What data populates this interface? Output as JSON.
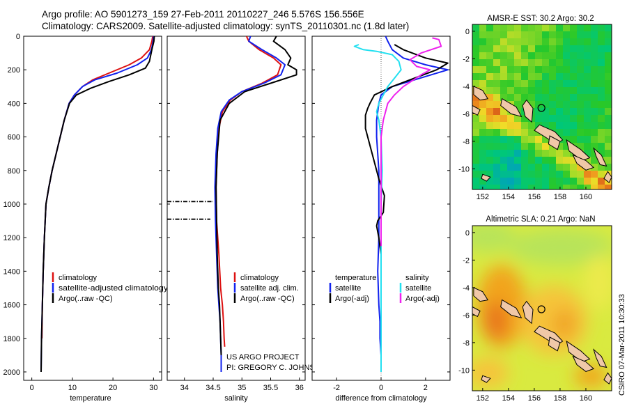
{
  "header": {
    "line1": "Argo profile: AO 5901273_159 27-Feb-2011 20110227_246 5.576S 156.556E",
    "line2": "Climatology: CARS2009. Satellite-adjusted climatology: synTS_20110301.nc (1.8d later)"
  },
  "colors": {
    "climatology": "#dd1111",
    "satellite": "#1122ee",
    "argo": "#000000",
    "salinity_satellite": "#22e0f0",
    "argo_adj_salinity": "#ee22ee",
    "land": "#f0c8a8"
  },
  "chart_data": [
    {
      "type": "line",
      "id": "temperature",
      "xlabel": "temperature",
      "ylabel": "",
      "xlim": [
        -2,
        32
      ],
      "ylim": [
        2050,
        0
      ],
      "xticks": [
        0,
        10,
        20,
        30
      ],
      "yticks": [
        0,
        200,
        400,
        600,
        800,
        1000,
        1200,
        1400,
        1600,
        1800,
        2000
      ],
      "legend_entries": [
        "climatology",
        "satellite-adjusted climatology",
        "Argo(..raw -QC)"
      ],
      "series": [
        {
          "name": "climatology",
          "color": "#dd1111",
          "x": [
            29.8,
            29.6,
            29.0,
            27.0,
            24.0,
            19.0,
            15.0,
            12.5,
            10.5,
            9.2,
            8.0,
            7.0,
            6.0,
            5.0,
            4.2,
            3.5,
            3.1,
            2.8,
            2.6,
            2.5
          ],
          "y": [
            0,
            30,
            80,
            130,
            170,
            220,
            260,
            300,
            350,
            400,
            500,
            600,
            700,
            800,
            900,
            1000,
            1200,
            1400,
            1600,
            1800
          ]
        },
        {
          "name": "satellite-adjusted climatology",
          "color": "#1122ee",
          "x": [
            30.0,
            29.9,
            29.5,
            28.5,
            26.0,
            21.0,
            15.5,
            12.5,
            10.5,
            9.2,
            8.0,
            7.0,
            6.0,
            5.0,
            4.2,
            3.5,
            3.1,
            2.8,
            2.6,
            2.4,
            2.3
          ],
          "y": [
            0,
            30,
            80,
            130,
            170,
            220,
            260,
            300,
            350,
            400,
            500,
            600,
            700,
            800,
            900,
            1000,
            1200,
            1400,
            1600,
            1800,
            2000
          ]
        },
        {
          "name": "Argo(..raw -QC)",
          "color": "#000000",
          "x": [
            30.2,
            30.1,
            29.6,
            29.0,
            28.0,
            24.0,
            19.0,
            14.5,
            11.0,
            9.3,
            8.0,
            7.0,
            6.0,
            5.0,
            4.2,
            3.5,
            3.1,
            2.8,
            2.6,
            2.4,
            2.3
          ],
          "y": [
            0,
            30,
            80,
            150,
            190,
            230,
            270,
            310,
            350,
            400,
            500,
            600,
            700,
            800,
            900,
            1000,
            1200,
            1400,
            1600,
            1800,
            2000
          ]
        }
      ]
    },
    {
      "type": "line",
      "id": "salinity",
      "xlabel": "salinity",
      "xlim": [
        33.7,
        36.1
      ],
      "ylim": [
        2050,
        0
      ],
      "xticks": [
        34,
        34.5,
        35,
        35.5,
        36
      ],
      "legend_entries": [
        "climatology",
        "satellite adj. clim.",
        "Argo(..raw -QC)"
      ],
      "annotation": [
        "US ARGO PROJECT",
        "PI: GREGORY C. JOHNSON"
      ],
      "series": [
        {
          "name": "climatology",
          "color": "#dd1111",
          "x": [
            35.08,
            35.12,
            35.3,
            35.55,
            35.68,
            35.62,
            35.35,
            35.0,
            34.8,
            34.66,
            34.6,
            34.57,
            34.55,
            34.56,
            34.6,
            34.63,
            34.66,
            34.68,
            34.69,
            34.7
          ],
          "y": [
            0,
            30,
            80,
            130,
            170,
            230,
            280,
            330,
            380,
            450,
            550,
            700,
            900,
            1100,
            1300,
            1500,
            1600,
            1700,
            1800,
            1850
          ]
        },
        {
          "name": "satellite adj. clim.",
          "color": "#1122ee",
          "x": [
            35.15,
            35.12,
            35.35,
            35.6,
            35.75,
            35.68,
            35.38,
            35.0,
            34.78,
            34.64,
            34.58,
            34.55,
            34.53,
            34.54,
            34.56,
            34.58,
            34.6,
            34.62,
            34.63,
            34.64,
            34.64
          ],
          "y": [
            0,
            30,
            80,
            130,
            170,
            230,
            280,
            330,
            380,
            450,
            550,
            700,
            900,
            1100,
            1300,
            1500,
            1600,
            1700,
            1800,
            1900,
            2000
          ]
        },
        {
          "name": "Argo(..raw -QC)",
          "color": "#000000",
          "x": [
            35.6,
            35.55,
            35.75,
            35.85,
            35.8,
            35.95,
            35.95,
            35.5,
            35.05,
            34.78,
            34.62,
            34.57,
            34.55,
            34.56,
            34.57,
            34.59,
            34.61,
            34.62,
            34.63,
            34.64
          ],
          "y": [
            0,
            30,
            80,
            130,
            170,
            200,
            230,
            280,
            330,
            400,
            500,
            700,
            900,
            1100,
            1300,
            1500,
            1600,
            1700,
            1800,
            1900
          ]
        },
        {
          "name": "",
          "color": "#000000",
          "dash": "dashdot",
          "x": [
            33.7,
            34.5
          ],
          "y": [
            985,
            985
          ]
        },
        {
          "name": "",
          "color": "#000000",
          "dash": "dashdot",
          "x": [
            33.7,
            34.45
          ],
          "y": [
            1090,
            1090
          ]
        }
      ]
    },
    {
      "type": "line",
      "id": "difference",
      "xlabel": "difference from climatology",
      "xlim": [
        -3.1,
        3.1
      ],
      "ylim": [
        2050,
        0
      ],
      "xticks": [
        -2,
        0,
        2
      ],
      "legend": {
        "temperature_title": "temperature",
        "salinity_title": "salinity",
        "temperature_entries": [
          "satellite",
          "Argo(-adj)"
        ],
        "salinity_entries": [
          "satellite",
          "Argo(-adj)"
        ]
      },
      "series": [
        {
          "name": "satellite",
          "group": "temperature",
          "color": "#1122ee",
          "x": [
            0.2,
            0.3,
            0.5,
            1.0,
            2.0,
            3.0,
            2.0,
            0.5,
            0.0,
            -0.1,
            -0.2,
            -0.2,
            -0.1,
            -0.1,
            -0.1,
            -0.15,
            -0.1,
            -0.05,
            -0.05,
            0.0,
            0.0
          ],
          "y": [
            0,
            30,
            80,
            130,
            170,
            200,
            240,
            300,
            350,
            400,
            500,
            600,
            800,
            1000,
            1200,
            1400,
            1600,
            1700,
            1800,
            1900,
            2000
          ]
        },
        {
          "name": "Argo(-adj)",
          "group": "temperature",
          "color": "#000000",
          "x": [
            0.6,
            1.0,
            2.0,
            3.0,
            2.5,
            1.5,
            0.5,
            -0.3,
            -0.5,
            -0.6,
            -0.7,
            -0.7,
            -0.5,
            -0.3,
            -0.1,
            0.15,
            0.1,
            -0.15,
            -0.2,
            -0.1,
            0.0
          ],
          "y": [
            50,
            80,
            130,
            160,
            200,
            250,
            300,
            350,
            400,
            430,
            470,
            550,
            650,
            750,
            850,
            950,
            1050,
            1100,
            1130,
            1200,
            1300
          ]
        },
        {
          "name": "satellite",
          "group": "salinity",
          "color": "#22e0f0",
          "x": [
            -1.0,
            -1.2,
            -0.8,
            -0.2,
            0.5,
            0.8,
            0.9,
            0.6,
            0.3,
            0.1,
            -0.1,
            -0.2,
            -0.1,
            0.0,
            0.05,
            0.0,
            0.0,
            0.0,
            0.0,
            0.0
          ],
          "y": [
            50,
            60,
            80,
            90,
            110,
            150,
            200,
            250,
            300,
            350,
            400,
            450,
            500,
            600,
            800,
            1000,
            1200,
            1400,
            1600,
            2000
          ]
        },
        {
          "name": "Argo(-adj)",
          "group": "salinity",
          "color": "#ee22ee",
          "x": [
            2.3,
            2.6,
            2.7,
            1.8,
            1.3,
            1.6,
            2.2,
            1.8,
            1.0,
            0.6,
            0.3,
            0.1,
            0.0,
            0.0,
            0.0,
            0.0,
            0.0,
            0.0,
            0.0,
            0.0
          ],
          "y": [
            10,
            20,
            60,
            100,
            140,
            180,
            200,
            230,
            300,
            350,
            400,
            500,
            600,
            700,
            800,
            900,
            1000,
            1100,
            1200,
            1250
          ]
        }
      ]
    },
    {
      "type": "heatmap",
      "id": "sst_map",
      "title": "AMSR-E SST: 30.2  Argo: 30.2",
      "xlim": [
        151.2,
        162
      ],
      "ylim": [
        -11.5,
        0.5
      ],
      "xticks": [
        152,
        154,
        156,
        158,
        160
      ],
      "yticks": [
        0,
        -2,
        -4,
        -6,
        -8,
        -10
      ],
      "marker": {
        "lon": 156.556,
        "lat": -5.576
      }
    },
    {
      "type": "heatmap",
      "id": "sla_map",
      "title": "Altimetric SLA: 0.21  Argo: NaN",
      "xlim": [
        151.2,
        162
      ],
      "ylim": [
        -11.5,
        0.5
      ],
      "xticks": [
        152,
        154,
        156,
        158,
        160
      ],
      "yticks": [
        0,
        -2,
        -4,
        -6,
        -8,
        -10
      ],
      "marker": {
        "lon": 156.556,
        "lat": -5.576
      }
    }
  ],
  "side_label": "CSIRO 07-Mar-2011 10:30:33"
}
